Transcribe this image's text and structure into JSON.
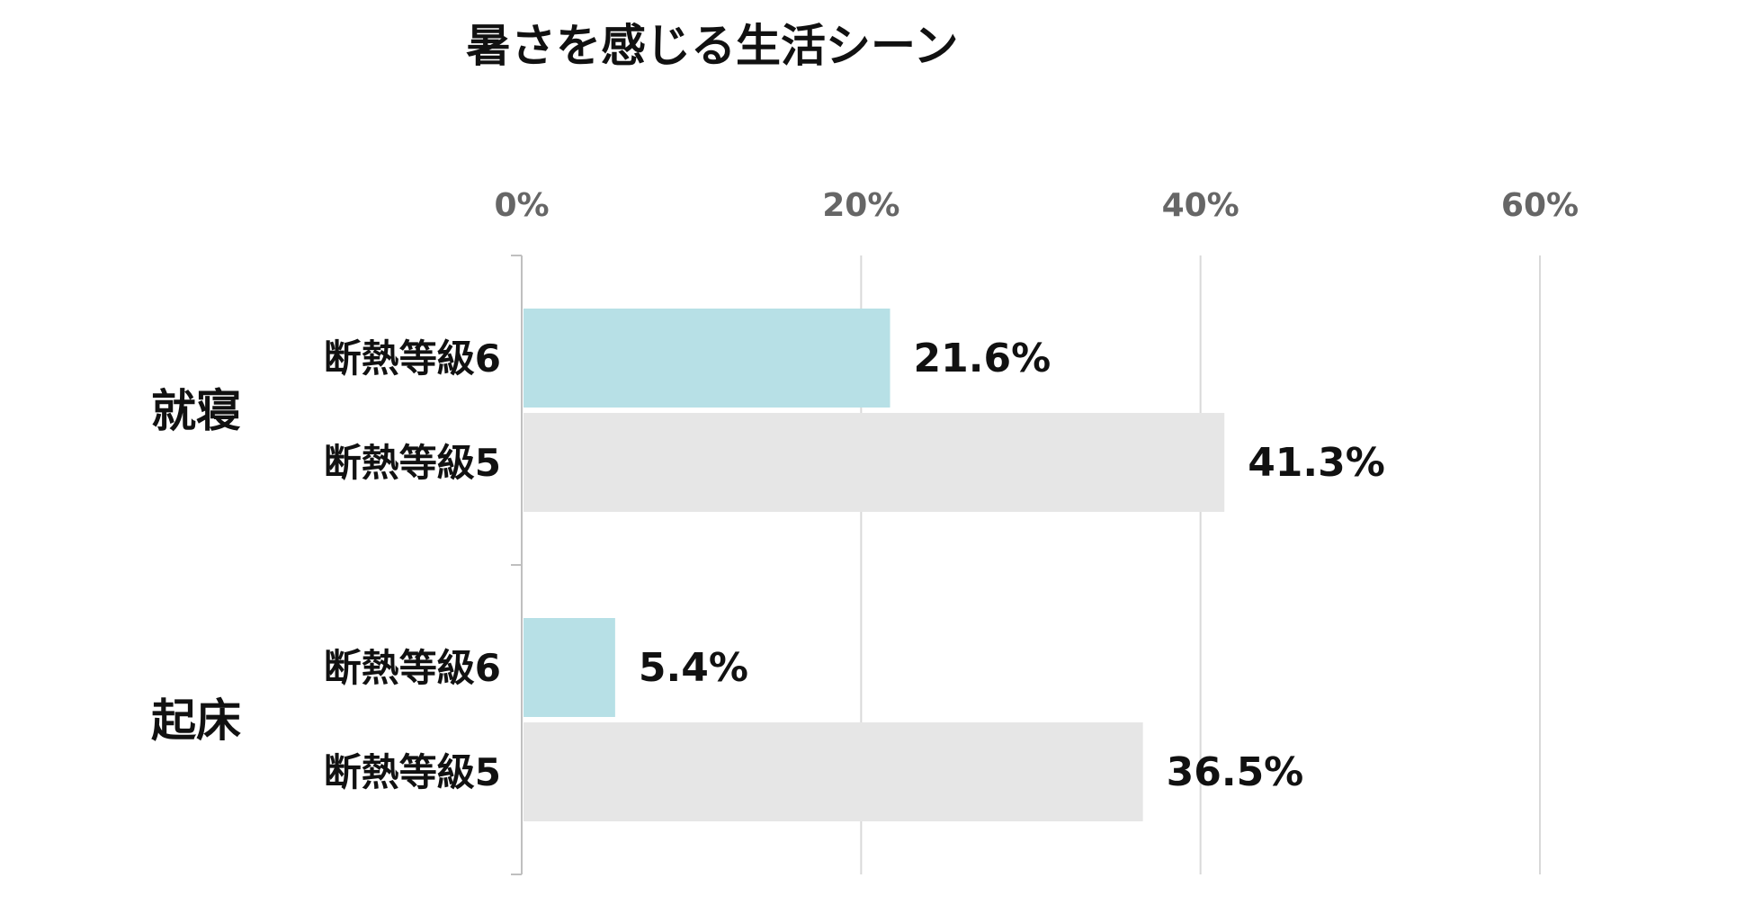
{
  "chart_data": {
    "type": "bar",
    "orientation": "horizontal",
    "title": "暑さを感じる生活シーン",
    "xlabel": "",
    "ylabel": "",
    "xlim": [
      0,
      60
    ],
    "ticks": [
      0,
      20,
      40,
      60
    ],
    "tick_labels": [
      "0%",
      "20%",
      "40%",
      "60%"
    ],
    "grid": true,
    "groups": [
      {
        "name": "就寝",
        "bars": [
          {
            "label": "断熱等級6",
            "value": 21.6,
            "value_label": "21.6%"
          },
          {
            "label": "断熱等級5",
            "value": 41.3,
            "value_label": "41.3%"
          }
        ]
      },
      {
        "name": "起床",
        "bars": [
          {
            "label": "断熱等級6",
            "value": 5.4,
            "value_label": "5.4%"
          },
          {
            "label": "断熱等級5",
            "value": 36.5,
            "value_label": "36.5%"
          }
        ]
      }
    ],
    "colors": {
      "断熱等級6": "#b7e0e6",
      "断熱等級5": "#e6e6e6"
    }
  }
}
